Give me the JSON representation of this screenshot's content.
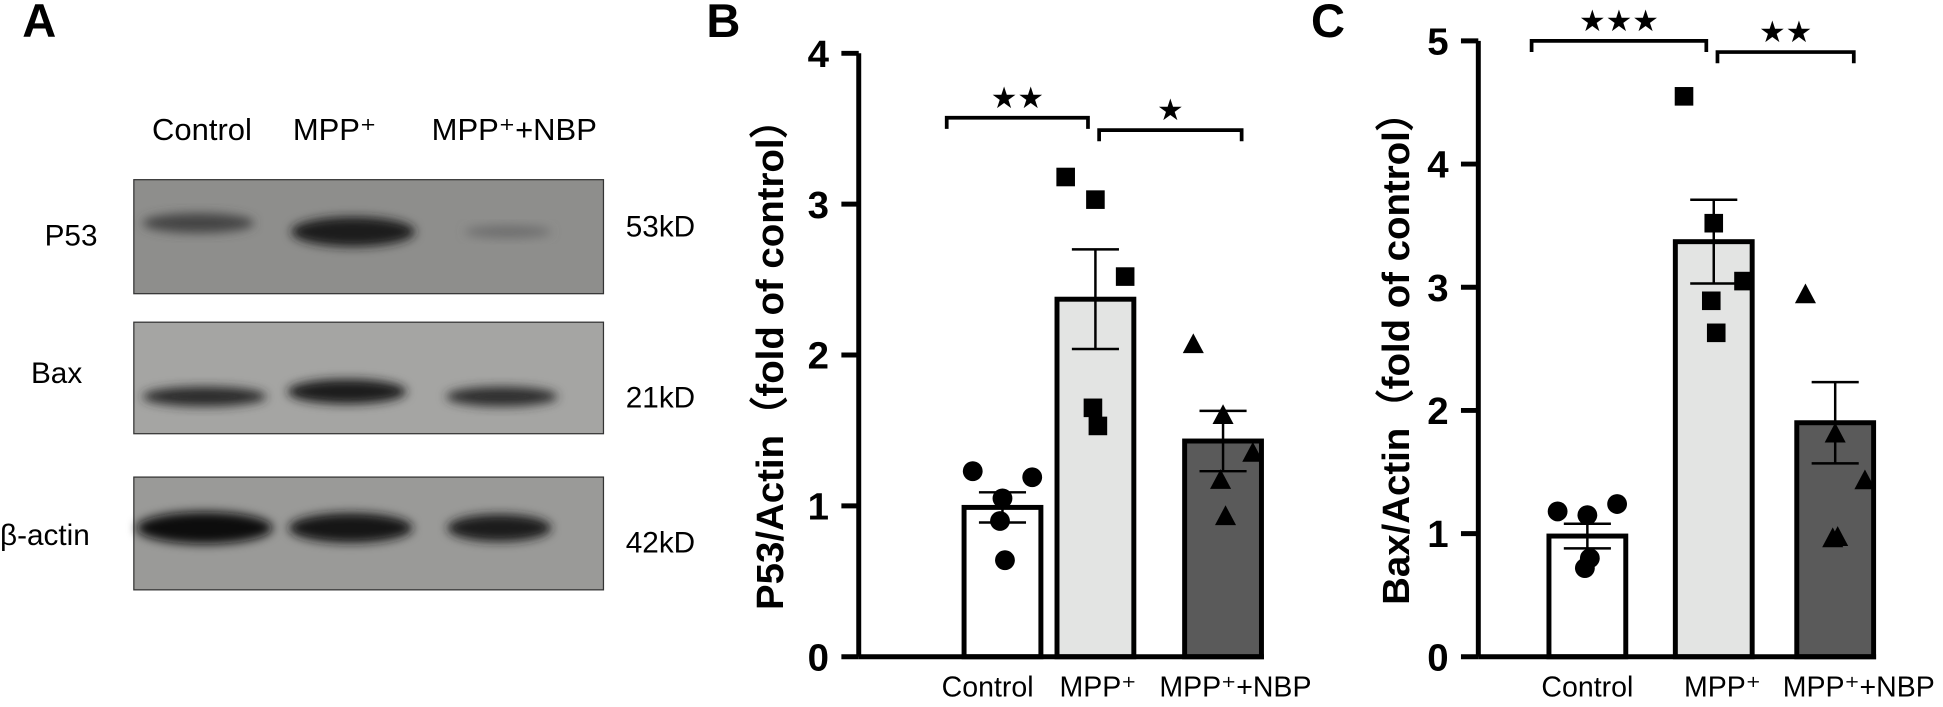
{
  "blot": {
    "label": "A",
    "lanes": [
      "Control",
      "MPP⁺",
      "MPP⁺+NBP"
    ],
    "rows": [
      {
        "name": "P53",
        "size": "53kD"
      },
      {
        "name": "Bax",
        "size": "21kD"
      },
      {
        "name": "β-actin",
        "size": "42kD"
      }
    ]
  },
  "chart_data": [
    {
      "type": "bar",
      "label": "B",
      "y_label": "P53/Actin（fold of control）",
      "categories": [
        "Control",
        "MPP⁺",
        "MPP⁺+NBP"
      ],
      "values": [
        0.99,
        2.37,
        1.43
      ],
      "errors": [
        0.1,
        0.33,
        0.2
      ],
      "points": [
        [
          1.23,
          1.05,
          1.19,
          0.9,
          0.64
        ],
        [
          3.18,
          3.03,
          2.52,
          1.65,
          1.53
        ],
        [
          2.07,
          1.6,
          1.35,
          1.17,
          0.93
        ]
      ],
      "colors": [
        "#ffffff",
        "#e3e4e3",
        "#5a5a5a"
      ],
      "markers": [
        "circle",
        "square",
        "triangle"
      ],
      "ylim": [
        0,
        4
      ],
      "yticks": [
        0,
        1,
        2,
        3,
        4
      ],
      "comparisons": [
        "★★",
        "★"
      ]
    },
    {
      "type": "bar",
      "label": "C",
      "y_label": "Bax/Actin（fold of control）",
      "categories": [
        "Control",
        "MPP⁺",
        "MPP⁺+NBP"
      ],
      "values": [
        0.98,
        3.37,
        1.9
      ],
      "errors": [
        0.1,
        0.34,
        0.33
      ],
      "points": [
        [
          1.18,
          1.15,
          1.24,
          0.72,
          0.8
        ],
        [
          4.55,
          3.52,
          3.05,
          2.89,
          2.63
        ],
        [
          2.94,
          1.81,
          1.43,
          0.96,
          0.97
        ]
      ],
      "colors": [
        "#ffffff",
        "#e3e4e3",
        "#5a5a5a"
      ],
      "markers": [
        "circle",
        "square",
        "triangle"
      ],
      "ylim": [
        0,
        5
      ],
      "yticks": [
        0,
        1,
        2,
        3,
        4,
        5
      ],
      "comparisons": [
        "★★★",
        "★★"
      ]
    }
  ]
}
